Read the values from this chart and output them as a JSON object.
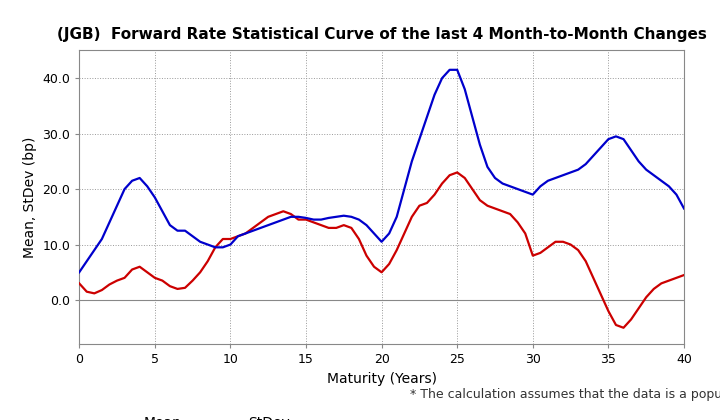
{
  "title": "(JGB)  Forward Rate Statistical Curve of the last 4 Month-to-Month Changes",
  "xlabel": "Maturity (Years)",
  "ylabel": "Mean, StDev (bp)",
  "annotation": "* The calculation assumes that the data is a population.",
  "mean_x": [
    0,
    0.5,
    1,
    1.5,
    2,
    2.5,
    3,
    3.5,
    4,
    4.5,
    5,
    5.5,
    6,
    6.5,
    7,
    7.5,
    8,
    8.5,
    9,
    9.5,
    10,
    10.5,
    11,
    11.5,
    12,
    12.5,
    13,
    13.5,
    14,
    14.5,
    15,
    15.5,
    16,
    16.5,
    17,
    17.5,
    18,
    18.5,
    19,
    19.5,
    20,
    20.5,
    21,
    21.5,
    22,
    22.5,
    23,
    23.5,
    24,
    24.5,
    25,
    25.5,
    26,
    26.5,
    27,
    27.5,
    28,
    28.5,
    29,
    29.5,
    30,
    30.5,
    31,
    31.5,
    32,
    32.5,
    33,
    33.5,
    34,
    34.5,
    35,
    35.5,
    36,
    36.5,
    37,
    37.5,
    38,
    38.5,
    39,
    39.5,
    40
  ],
  "mean_y": [
    3.0,
    1.5,
    1.2,
    1.8,
    2.8,
    3.5,
    4.0,
    5.5,
    6.0,
    5.0,
    4.0,
    3.5,
    2.5,
    2.0,
    2.2,
    3.5,
    5.0,
    7.0,
    9.5,
    11.0,
    11.0,
    11.5,
    12.0,
    13.0,
    14.0,
    15.0,
    15.5,
    16.0,
    15.5,
    14.5,
    14.5,
    14.0,
    13.5,
    13.0,
    13.0,
    13.5,
    13.0,
    11.0,
    8.0,
    6.0,
    5.0,
    6.5,
    9.0,
    12.0,
    15.0,
    17.0,
    17.5,
    19.0,
    21.0,
    22.5,
    23.0,
    22.0,
    20.0,
    18.0,
    17.0,
    16.5,
    16.0,
    15.5,
    14.0,
    12.0,
    8.0,
    8.5,
    9.5,
    10.5,
    10.5,
    10.0,
    9.0,
    7.0,
    4.0,
    1.0,
    -2.0,
    -4.5,
    -5.0,
    -3.5,
    -1.5,
    0.5,
    2.0,
    3.0,
    3.5,
    4.0,
    4.5
  ],
  "stdev_x": [
    0,
    0.5,
    1,
    1.5,
    2,
    2.5,
    3,
    3.5,
    4,
    4.5,
    5,
    5.5,
    6,
    6.5,
    7,
    7.5,
    8,
    8.5,
    9,
    9.5,
    10,
    10.5,
    11,
    11.5,
    12,
    12.5,
    13,
    13.5,
    14,
    14.5,
    15,
    15.5,
    16,
    16.5,
    17,
    17.5,
    18,
    18.5,
    19,
    19.5,
    20,
    20.5,
    21,
    21.5,
    22,
    22.5,
    23,
    23.5,
    24,
    24.5,
    25,
    25.5,
    26,
    26.5,
    27,
    27.5,
    28,
    28.5,
    29,
    29.5,
    30,
    30.5,
    31,
    31.5,
    32,
    32.5,
    33,
    33.5,
    34,
    34.5,
    35,
    35.5,
    36,
    36.5,
    37,
    37.5,
    38,
    38.5,
    39,
    39.5,
    40
  ],
  "stdev_y": [
    5.0,
    7.0,
    9.0,
    11.0,
    14.0,
    17.0,
    20.0,
    21.5,
    22.0,
    20.5,
    18.5,
    16.0,
    13.5,
    12.5,
    12.5,
    11.5,
    10.5,
    10.0,
    9.5,
    9.5,
    10.0,
    11.5,
    12.0,
    12.5,
    13.0,
    13.5,
    14.0,
    14.5,
    15.0,
    15.0,
    14.8,
    14.5,
    14.5,
    14.8,
    15.0,
    15.2,
    15.0,
    14.5,
    13.5,
    12.0,
    10.5,
    12.0,
    15.0,
    20.0,
    25.0,
    29.0,
    33.0,
    37.0,
    40.0,
    41.5,
    41.5,
    38.0,
    33.0,
    28.0,
    24.0,
    22.0,
    21.0,
    20.5,
    20.0,
    19.5,
    19.0,
    20.5,
    21.5,
    22.0,
    22.5,
    23.0,
    23.5,
    24.5,
    26.0,
    27.5,
    29.0,
    29.5,
    29.0,
    27.0,
    25.0,
    23.5,
    22.5,
    21.5,
    20.5,
    19.0,
    16.5
  ],
  "mean_color": "#cc0000",
  "stdev_color": "#0000cc",
  "xlim": [
    0,
    40
  ],
  "ylim": [
    -8,
    45
  ],
  "yticks": [
    0.0,
    10.0,
    20.0,
    30.0,
    40.0
  ],
  "ytick_labels": [
    "0.0",
    "10.0",
    "20.0",
    "30.0",
    "40.0"
  ],
  "xticks": [
    0,
    5,
    10,
    15,
    20,
    25,
    30,
    35,
    40
  ],
  "grid_color": "#999999",
  "background_color": "#ffffff",
  "legend_mean": "Mean",
  "legend_stdev": "StDev",
  "title_fontsize": 11,
  "axis_fontsize": 10,
  "tick_fontsize": 9,
  "annotation_fontsize": 9
}
